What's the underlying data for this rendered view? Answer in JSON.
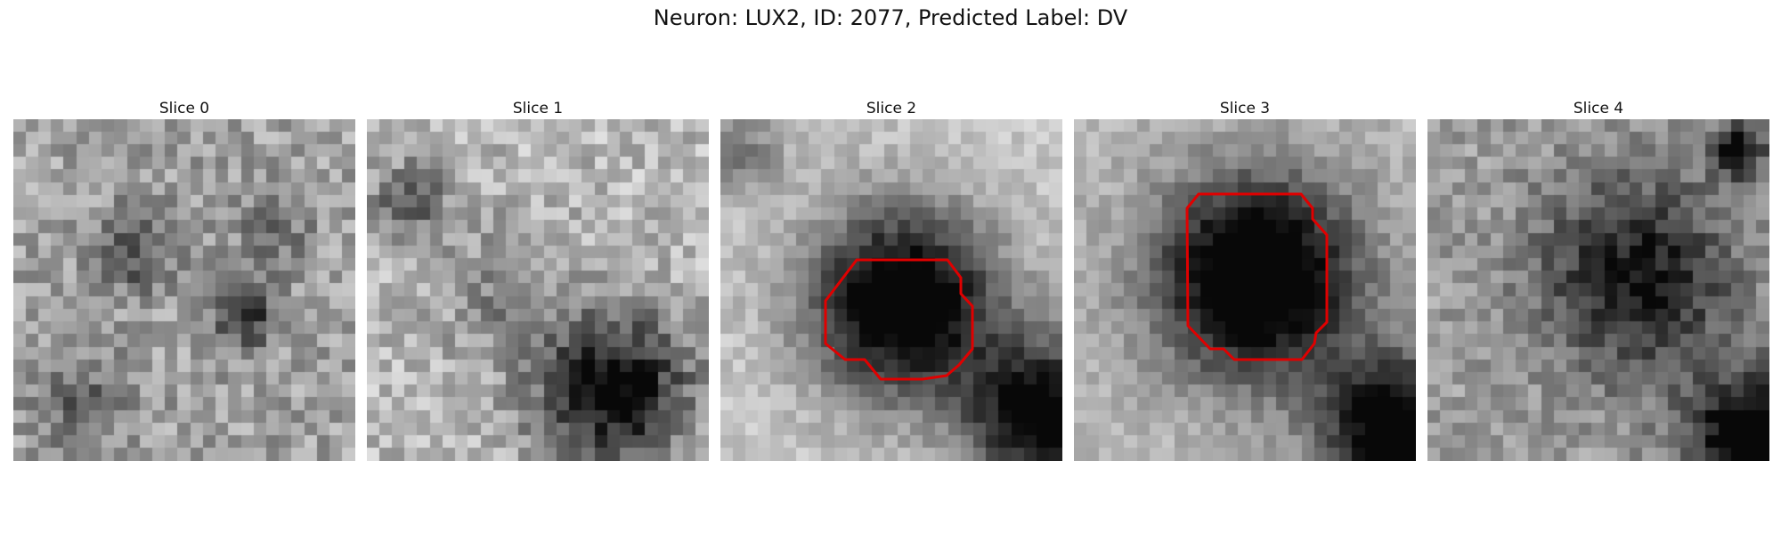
{
  "figure": {
    "title": "Neuron: LUX2, ID: 2077, Predicted Label: DV"
  },
  "colors": {
    "contour": "#e00000"
  },
  "panels": [
    {
      "title": "Slice 0"
    },
    {
      "title": "Slice 1"
    },
    {
      "title": "Slice 2"
    },
    {
      "title": "Slice 3"
    },
    {
      "title": "Slice 4"
    }
  ]
}
